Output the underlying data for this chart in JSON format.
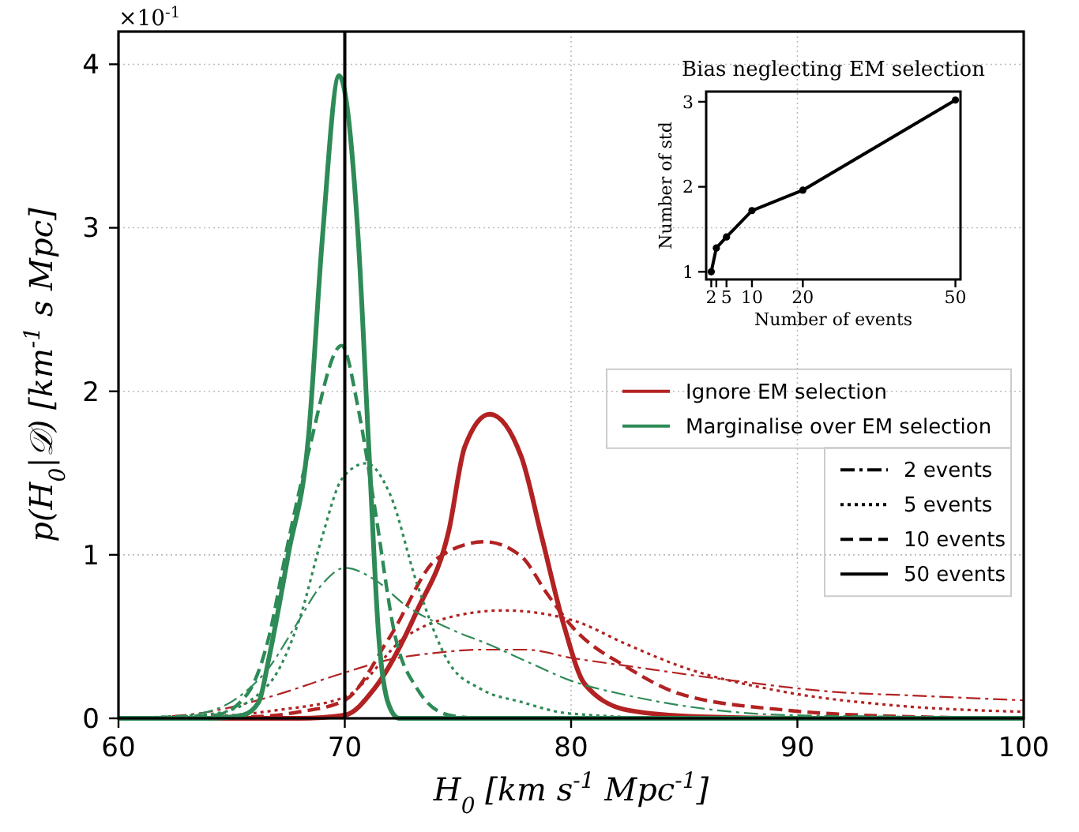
{
  "chart_data": [
    {
      "type": "line",
      "xlabel": "H$_{0}$ [km s$^{-1}$ Mpc$^{-1}$]",
      "ylabel": "p(H$_{0}$|𝒟) [km$^{-1}$ s Mpc]",
      "annotations": [
        "×10$^{-1}$"
      ],
      "xlim": [
        60,
        100
      ],
      "ylim": [
        0,
        4.2
      ],
      "xticks": [
        60,
        70,
        80,
        90,
        100
      ],
      "yticks": [
        0,
        1,
        2,
        3,
        4
      ],
      "grid": true,
      "legend": "right",
      "ref_lines": [
        {
          "axis": "x",
          "value": 70,
          "color": "#000000",
          "line_style": "solid"
        }
      ],
      "series": [
        {
          "color": "#b22222",
          "line_style": "dashdot",
          "x": [
            60,
            62,
            64,
            66.65,
            70,
            72,
            74,
            76,
            78,
            80,
            82.5,
            87.2,
            91.8,
            95,
            100
          ],
          "values": [
            0,
            0.01,
            0.04,
            0.13,
            0.28,
            0.36,
            0.4,
            0.42,
            0.42,
            0.37,
            0.32,
            0.23,
            0.16,
            0.14,
            0.11
          ]
        },
        {
          "color": "#b22222",
          "line_style": "dotted",
          "x": [
            60,
            64,
            67,
            70,
            72.7,
            75,
            77,
            80.05,
            82.5,
            84.8,
            89.5,
            94.2,
            100
          ],
          "values": [
            0,
            0.01,
            0.05,
            0.13,
            0.5,
            0.63,
            0.66,
            0.6,
            0.45,
            0.32,
            0.16,
            0.08,
            0.04
          ]
        },
        {
          "color": "#b22222",
          "line_style": "dashed",
          "x": [
            60,
            66,
            68,
            70,
            72,
            74.1,
            76.2,
            77.8,
            78.95,
            80.05,
            82.5,
            84.8,
            89.5,
            95,
            100
          ],
          "values": [
            0,
            0.01,
            0.04,
            0.11,
            0.5,
            0.98,
            1.08,
            0.99,
            0.76,
            0.56,
            0.31,
            0.15,
            0.05,
            0.01,
            0
          ]
        },
        {
          "name": "Ignore EM selection",
          "color": "#b22222",
          "line_style": "solid",
          "x": [
            60,
            68,
            70,
            71.3,
            73.2,
            74.6,
            75.3,
            76.4,
            77.8,
            78.7,
            79.7,
            80.6,
            82.5,
            85.7,
            90,
            100
          ],
          "values": [
            0,
            0,
            0.02,
            0.18,
            0.66,
            1.15,
            1.66,
            1.86,
            1.6,
            1.11,
            0.56,
            0.21,
            0.05,
            0.01,
            0,
            0
          ]
        },
        {
          "color": "#2e8b57",
          "line_style": "dashdot",
          "x": [
            60,
            61,
            63.2,
            65.5,
            66.65,
            67.8,
            69,
            70,
            71.3,
            72.7,
            74.6,
            76.4,
            78,
            80,
            82.5,
            84.8,
            89.5,
            95,
            100
          ],
          "values": [
            0,
            0,
            0.02,
            0.15,
            0.31,
            0.56,
            0.82,
            0.92,
            0.85,
            0.69,
            0.55,
            0.45,
            0.35,
            0.23,
            0.14,
            0.08,
            0.02,
            0.01,
            0
          ]
        },
        {
          "color": "#2e8b57",
          "line_style": "dotted",
          "x": [
            60,
            62,
            64.3,
            66.65,
            68.05,
            69,
            69.9,
            70.95,
            72,
            73.2,
            74.6,
            76,
            77.8,
            79.9,
            85,
            100
          ],
          "values": [
            0,
            0.01,
            0.03,
            0.21,
            0.63,
            1.11,
            1.47,
            1.56,
            1.37,
            0.82,
            0.34,
            0.18,
            0.1,
            0.03,
            0,
            0
          ]
        },
        {
          "color": "#2e8b57",
          "line_style": "dashed",
          "x": [
            60,
            63,
            64.3,
            65.7,
            66.65,
            67.35,
            68.4,
            69.86,
            70.6,
            71.3,
            72.23,
            73.2,
            74.6,
            76,
            100
          ],
          "values": [
            0,
            0.01,
            0.02,
            0.15,
            0.5,
            0.98,
            1.63,
            2.28,
            1.89,
            1.31,
            0.5,
            0.18,
            0.02,
            0,
            0
          ]
        },
        {
          "name": "Marginalise over EM selection",
          "color": "#2e8b57",
          "line_style": "solid",
          "x": [
            60,
            64,
            65.5,
            66.2,
            66.65,
            67.5,
            68.4,
            69,
            69.75,
            70.6,
            71.07,
            71.5,
            71.95,
            72.4,
            100
          ],
          "values": [
            0,
            0,
            0.02,
            0.1,
            0.37,
            1.0,
            1.73,
            2.92,
            3.93,
            2.92,
            1.63,
            0.5,
            0.08,
            0,
            0
          ]
        },
        {
          "name": "2 events",
          "color": "#000000",
          "line_style": "dashdot"
        },
        {
          "name": "5 events",
          "color": "#000000",
          "line_style": "dotted"
        },
        {
          "name": "10 events",
          "color": "#000000",
          "line_style": "dashed"
        },
        {
          "name": "50 events",
          "color": "#000000",
          "line_style": "solid"
        }
      ]
    },
    {
      "type": "line",
      "title": "Bias neglecting EM selection",
      "xlabel": "Number of events",
      "ylabel": "Number of std",
      "xlim": [
        1,
        51
      ],
      "ylim": [
        0.91,
        3.12
      ],
      "xticks": [
        2,
        {
          "value": 3,
          "label": null
        },
        5,
        10,
        20,
        50
      ],
      "yticks": [
        1,
        2,
        3
      ],
      "marker": "circle",
      "series": [
        {
          "color": "#000000",
          "line_style": "solid",
          "x": [
            2,
            3,
            5,
            10,
            20,
            50
          ],
          "values": [
            1.0,
            1.28,
            1.41,
            1.72,
            1.96,
            3.02
          ]
        }
      ]
    }
  ]
}
